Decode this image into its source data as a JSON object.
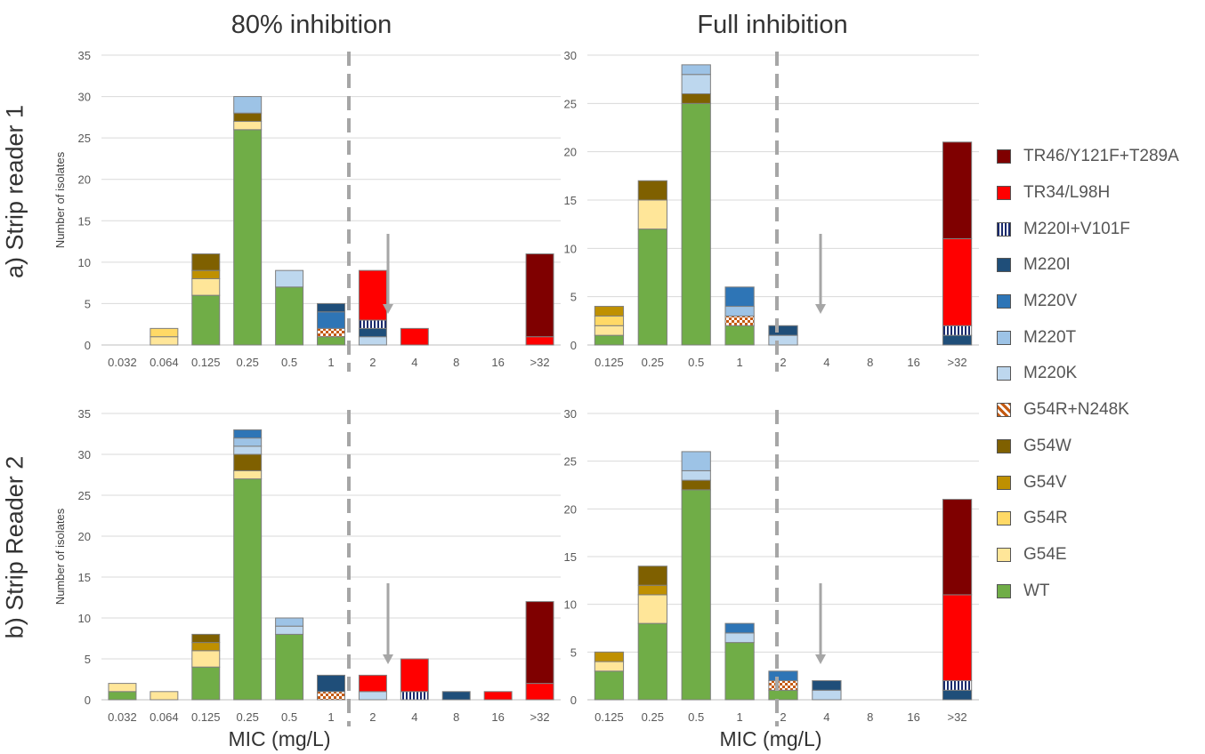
{
  "titles": {
    "col_left": "80% inhibition",
    "col_right": "Full inhibition"
  },
  "row_labels": {
    "top": "a) Strip reader 1",
    "bottom": "b) Strip Reader 2"
  },
  "legend": [
    {
      "name": "TR46/Y121F+T289A",
      "color": "#7F0000"
    },
    {
      "name": "TR34/L98H",
      "color": "#FF0000"
    },
    {
      "name": "M220I+V101F",
      "color": "#1A2A6C",
      "pattern": "stripes"
    },
    {
      "name": "M220I",
      "color": "#1F4E79"
    },
    {
      "name": "M220V",
      "color": "#2E75B6"
    },
    {
      "name": "M220T",
      "color": "#9DC3E6"
    },
    {
      "name": "M220K",
      "color": "#BDD7EE"
    },
    {
      "name": "G54R+N248K",
      "color": "#C55A11",
      "pattern": "check"
    },
    {
      "name": "G54W",
      "color": "#7F6000"
    },
    {
      "name": "G54V",
      "color": "#BF9000"
    },
    {
      "name": "G54R",
      "color": "#FFD966"
    },
    {
      "name": "G54E",
      "color": "#FFE699"
    },
    {
      "name": "WT",
      "color": "#70AD47"
    }
  ],
  "chart_data": [
    {
      "type": "bar",
      "panel": "a) Strip reader 1 — 80% inhibition",
      "title": "80% inhibition",
      "xlabel": "",
      "ylabel": "Number of isolates",
      "ylim": [
        0,
        35
      ],
      "yticks": [
        0,
        5,
        10,
        15,
        20,
        25,
        30,
        35
      ],
      "categories": [
        "0.032",
        "0.064",
        "0.125",
        "0.25",
        "0.5",
        "1",
        "2",
        "4",
        "8",
        "16",
        ">32"
      ],
      "series": [
        {
          "name": "WT",
          "values": [
            0,
            0,
            6,
            26,
            7,
            1,
            0,
            0,
            0,
            0,
            0
          ]
        },
        {
          "name": "G54E",
          "values": [
            0,
            1,
            2,
            1,
            0,
            0,
            0,
            0,
            0,
            0,
            0
          ]
        },
        {
          "name": "G54R",
          "values": [
            0,
            1,
            0,
            0,
            0,
            0,
            0,
            0,
            0,
            0,
            0
          ]
        },
        {
          "name": "G54V",
          "values": [
            0,
            0,
            1,
            0,
            0,
            0,
            0,
            0,
            0,
            0,
            0
          ]
        },
        {
          "name": "G54W",
          "values": [
            0,
            0,
            2,
            1,
            0,
            0,
            0,
            0,
            0,
            0,
            0
          ]
        },
        {
          "name": "G54R+N248K",
          "values": [
            0,
            0,
            0,
            0,
            0,
            1,
            0,
            0,
            0,
            0,
            0
          ]
        },
        {
          "name": "M220K",
          "values": [
            0,
            0,
            0,
            0,
            2,
            0,
            1,
            0,
            0,
            0,
            0
          ]
        },
        {
          "name": "M220T",
          "values": [
            0,
            0,
            0,
            2,
            0,
            0,
            0,
            0,
            0,
            0,
            0
          ]
        },
        {
          "name": "M220V",
          "values": [
            0,
            0,
            0,
            0,
            0,
            2,
            0,
            0,
            0,
            0,
            0
          ]
        },
        {
          "name": "M220I",
          "values": [
            0,
            0,
            0,
            0,
            0,
            1,
            1,
            0,
            0,
            0,
            0
          ]
        },
        {
          "name": "M220I+V101F",
          "values": [
            0,
            0,
            0,
            0,
            0,
            0,
            1,
            0,
            0,
            0,
            0
          ]
        },
        {
          "name": "TR34/L98H",
          "values": [
            0,
            0,
            0,
            0,
            0,
            0,
            6,
            2,
            0,
            0,
            1
          ]
        },
        {
          "name": "TR46/Y121F+T289A",
          "values": [
            0,
            0,
            0,
            0,
            0,
            0,
            0,
            0,
            0,
            0,
            10
          ]
        }
      ],
      "breakpoint_after_category": "1",
      "arrow_at_category": "2"
    },
    {
      "type": "bar",
      "panel": "a) Strip reader 1 — Full inhibition",
      "title": "Full inhibition",
      "xlabel": "",
      "ylabel": "",
      "ylim": [
        0,
        30
      ],
      "yticks": [
        0,
        5,
        10,
        15,
        20,
        25,
        30
      ],
      "categories": [
        "0.125",
        "0.25",
        "0.5",
        "1",
        "2",
        "4",
        "8",
        "16",
        ">32"
      ],
      "series": [
        {
          "name": "WT",
          "values": [
            1,
            12,
            25,
            2,
            0,
            0,
            0,
            0,
            0
          ]
        },
        {
          "name": "G54E",
          "values": [
            1,
            3,
            0,
            0,
            0,
            0,
            0,
            0,
            0
          ]
        },
        {
          "name": "G54R",
          "values": [
            1,
            0,
            0,
            0,
            0,
            0,
            0,
            0,
            0
          ]
        },
        {
          "name": "G54V",
          "values": [
            1,
            0,
            0,
            0,
            0,
            0,
            0,
            0,
            0
          ]
        },
        {
          "name": "G54W",
          "values": [
            0,
            2,
            1,
            0,
            0,
            0,
            0,
            0,
            0
          ]
        },
        {
          "name": "G54R+N248K",
          "values": [
            0,
            0,
            0,
            1,
            0,
            0,
            0,
            0,
            0
          ]
        },
        {
          "name": "M220K",
          "values": [
            0,
            0,
            2,
            0,
            1,
            0,
            0,
            0,
            0
          ]
        },
        {
          "name": "M220T",
          "values": [
            0,
            0,
            1,
            1,
            0,
            0,
            0,
            0,
            0
          ]
        },
        {
          "name": "M220V",
          "values": [
            0,
            0,
            0,
            2,
            0,
            0,
            0,
            0,
            0
          ]
        },
        {
          "name": "M220I",
          "values": [
            0,
            0,
            0,
            0,
            1,
            0,
            0,
            0,
            1
          ]
        },
        {
          "name": "M220I+V101F",
          "values": [
            0,
            0,
            0,
            0,
            0,
            0,
            0,
            0,
            1
          ]
        },
        {
          "name": "TR34/L98H",
          "values": [
            0,
            0,
            0,
            0,
            0,
            0,
            0,
            0,
            9
          ]
        },
        {
          "name": "TR46/Y121F+T289A",
          "values": [
            0,
            0,
            0,
            0,
            0,
            0,
            0,
            0,
            10
          ]
        }
      ],
      "breakpoint_after_category": "1",
      "arrow_at_category": "2"
    },
    {
      "type": "bar",
      "panel": "b) Strip Reader 2 — 80% inhibition",
      "title": "",
      "xlabel": "MIC (mg/L)",
      "ylabel": "Number of isolates",
      "ylim": [
        0,
        35
      ],
      "yticks": [
        0,
        5,
        10,
        15,
        20,
        25,
        30,
        35
      ],
      "categories": [
        "0.032",
        "0.064",
        "0.125",
        "0.25",
        "0.5",
        "1",
        "2",
        "4",
        "8",
        "16",
        ">32"
      ],
      "series": [
        {
          "name": "WT",
          "values": [
            1,
            0,
            4,
            27,
            8,
            0,
            0,
            0,
            0,
            0,
            0
          ]
        },
        {
          "name": "G54E",
          "values": [
            1,
            1,
            2,
            1,
            0,
            0,
            0,
            0,
            0,
            0,
            0
          ]
        },
        {
          "name": "G54R",
          "values": [
            0,
            0,
            0,
            0,
            0,
            0,
            0,
            0,
            0,
            0,
            0
          ]
        },
        {
          "name": "G54V",
          "values": [
            0,
            0,
            1,
            0,
            0,
            0,
            0,
            0,
            0,
            0,
            0
          ]
        },
        {
          "name": "G54W",
          "values": [
            0,
            0,
            1,
            2,
            0,
            0,
            0,
            0,
            0,
            0,
            0
          ]
        },
        {
          "name": "G54R+N248K",
          "values": [
            0,
            0,
            0,
            0,
            0,
            1,
            0,
            0,
            0,
            0,
            0
          ]
        },
        {
          "name": "M220K",
          "values": [
            0,
            0,
            0,
            1,
            1,
            0,
            1,
            0,
            0,
            0,
            0
          ]
        },
        {
          "name": "M220T",
          "values": [
            0,
            0,
            0,
            1,
            1,
            0,
            0,
            0,
            0,
            0,
            0
          ]
        },
        {
          "name": "M220V",
          "values": [
            0,
            0,
            0,
            1,
            0,
            0,
            0,
            0,
            0,
            0,
            0
          ]
        },
        {
          "name": "M220I",
          "values": [
            0,
            0,
            0,
            0,
            0,
            2,
            0,
            0,
            1,
            0,
            0
          ]
        },
        {
          "name": "M220I+V101F",
          "values": [
            0,
            0,
            0,
            0,
            0,
            0,
            0,
            1,
            0,
            0,
            0
          ]
        },
        {
          "name": "TR34/L98H",
          "values": [
            0,
            0,
            0,
            0,
            0,
            0,
            2,
            4,
            0,
            1,
            2
          ]
        },
        {
          "name": "TR46/Y121F+T289A",
          "values": [
            0,
            0,
            0,
            0,
            0,
            0,
            0,
            0,
            0,
            0,
            10
          ]
        }
      ],
      "breakpoint_after_category": "1",
      "arrow_at_category": "2"
    },
    {
      "type": "bar",
      "panel": "b) Strip Reader 2 — Full inhibition",
      "title": "",
      "xlabel": "MIC (mg/L)",
      "ylabel": "",
      "ylim": [
        0,
        30
      ],
      "yticks": [
        0,
        5,
        10,
        15,
        20,
        25,
        30
      ],
      "categories": [
        "0.125",
        "0.25",
        "0.5",
        "1",
        "2",
        "4",
        "8",
        "16",
        ">32"
      ],
      "series": [
        {
          "name": "WT",
          "values": [
            3,
            8,
            22,
            6,
            1,
            0,
            0,
            0,
            0
          ]
        },
        {
          "name": "G54E",
          "values": [
            1,
            3,
            0,
            0,
            0,
            0,
            0,
            0,
            0
          ]
        },
        {
          "name": "G54R",
          "values": [
            0,
            0,
            0,
            0,
            0,
            0,
            0,
            0,
            0
          ]
        },
        {
          "name": "G54V",
          "values": [
            1,
            1,
            0,
            0,
            0,
            0,
            0,
            0,
            0
          ]
        },
        {
          "name": "G54W",
          "values": [
            0,
            2,
            1,
            0,
            0,
            0,
            0,
            0,
            0
          ]
        },
        {
          "name": "G54R+N248K",
          "values": [
            0,
            0,
            0,
            0,
            1,
            0,
            0,
            0,
            0
          ]
        },
        {
          "name": "M220K",
          "values": [
            0,
            0,
            1,
            1,
            0,
            1,
            0,
            0,
            0
          ]
        },
        {
          "name": "M220T",
          "values": [
            0,
            0,
            2,
            0,
            0,
            0,
            0,
            0,
            0
          ]
        },
        {
          "name": "M220V",
          "values": [
            0,
            0,
            0,
            1,
            1,
            0,
            0,
            0,
            0
          ]
        },
        {
          "name": "M220I",
          "values": [
            0,
            0,
            0,
            0,
            0,
            1,
            0,
            0,
            1
          ]
        },
        {
          "name": "M220I+V101F",
          "values": [
            0,
            0,
            0,
            0,
            0,
            0,
            0,
            0,
            1
          ]
        },
        {
          "name": "TR34/L98H",
          "values": [
            0,
            0,
            0,
            0,
            0,
            0,
            0,
            0,
            9
          ]
        },
        {
          "name": "TR46/Y121F+T289A",
          "values": [
            0,
            0,
            0,
            0,
            0,
            0,
            0,
            0,
            10
          ]
        }
      ],
      "breakpoint_after_category": "1",
      "arrow_at_category": "2"
    }
  ]
}
